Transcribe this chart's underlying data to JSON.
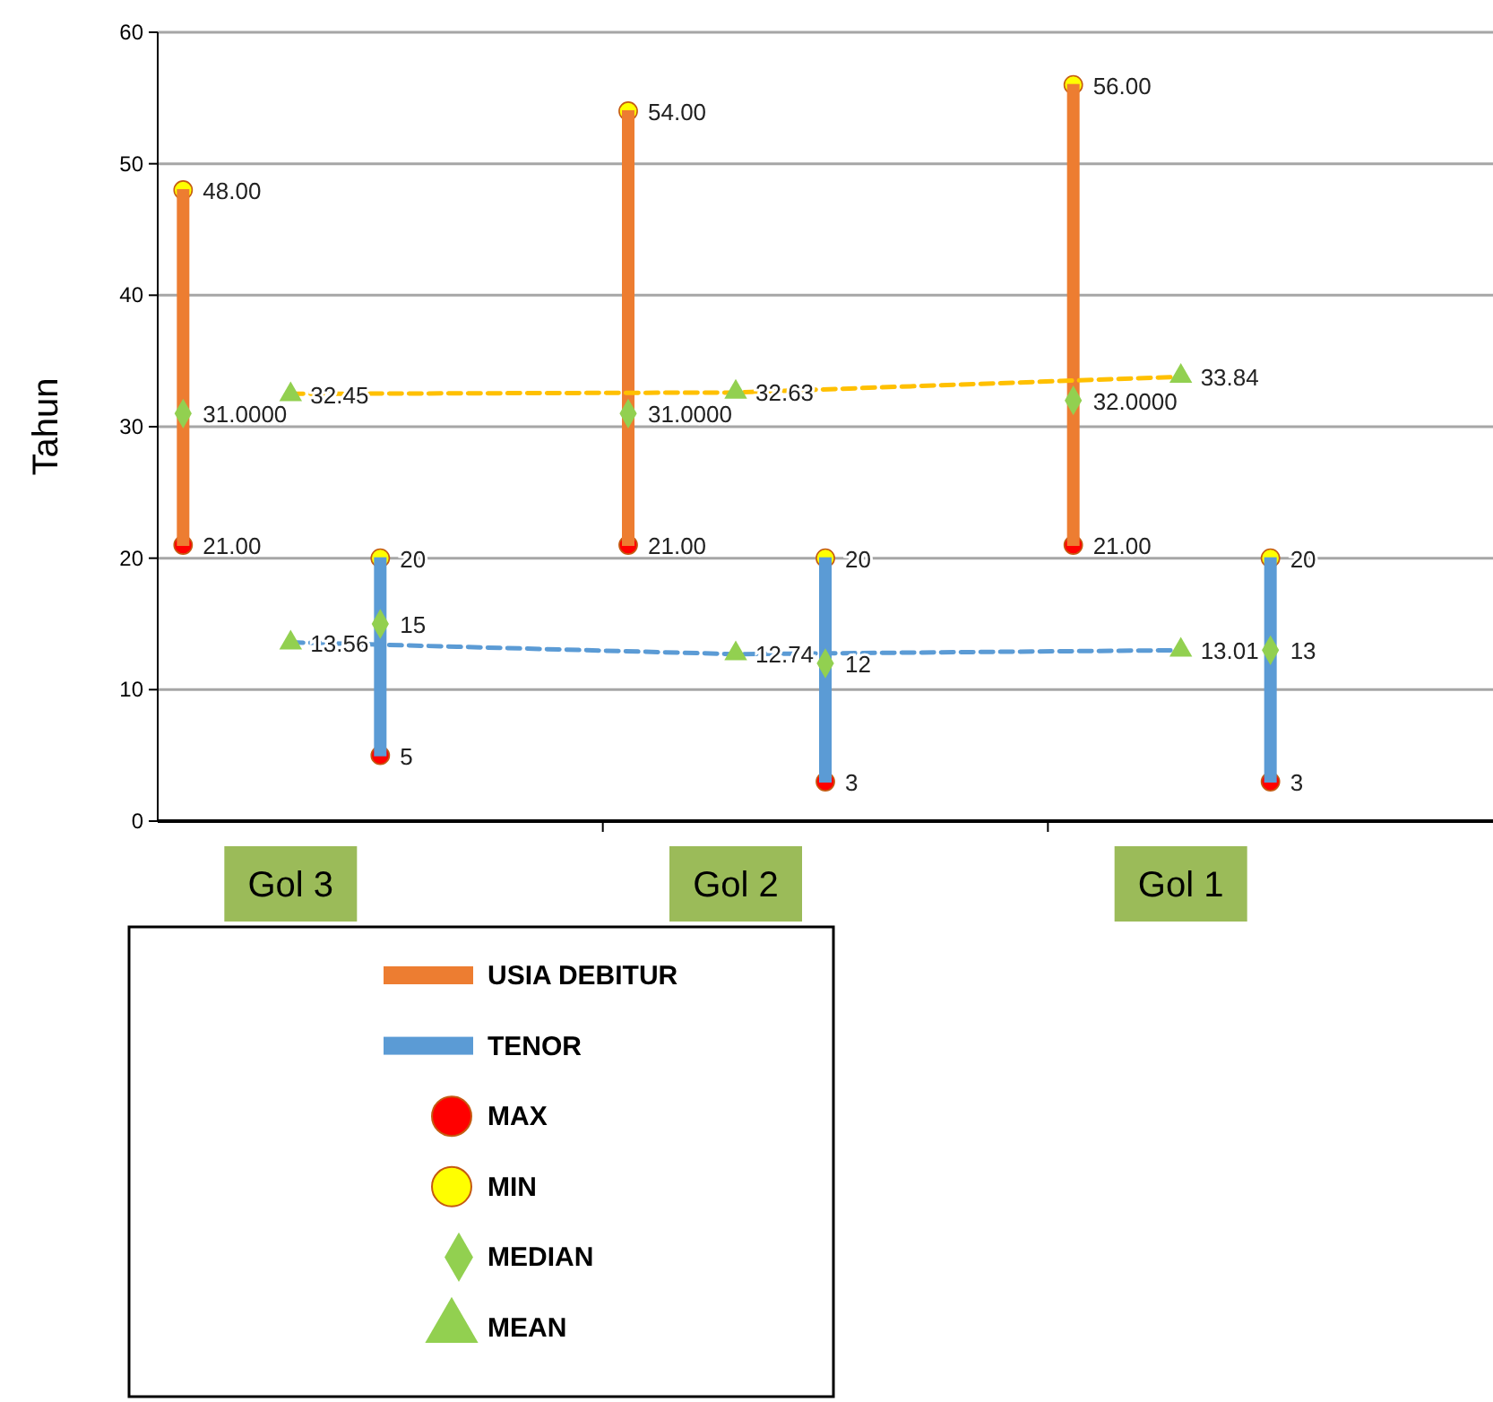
{
  "chart_data": {
    "type": "bar",
    "ylabel": "Tahun",
    "categories": [
      "Gol 3",
      "Gol 2",
      "Gol 1"
    ],
    "ylim": [
      0,
      60
    ],
    "yticks": [
      0,
      10,
      20,
      30,
      40,
      50,
      60
    ],
    "grid": "y",
    "legend": "bottom",
    "series": [
      {
        "name": "USIA DEBITUR",
        "color": "#ed7d31",
        "base": [
          21,
          21,
          21
        ],
        "values": [
          27,
          33,
          35
        ]
      },
      {
        "name": "TENOR",
        "color": "#5b9bd5",
        "base": [
          5,
          3,
          3
        ],
        "values": [
          15,
          17,
          17
        ]
      },
      {
        "type": "line",
        "color": "#ffc000",
        "line_style": "dashed",
        "marker": "none",
        "values": [
          32.5,
          32.6,
          33.8
        ]
      },
      {
        "type": "line",
        "color": "#5b9bd5",
        "line_style": "dashed",
        "marker": "none",
        "values": [
          13.6,
          12.7,
          13.0
        ]
      },
      {
        "name": "MAX",
        "type": "scatter",
        "color": "#ff0000",
        "marker": "circle",
        "x": [
          "Gol 3",
          "Gol 3",
          "Gol 2",
          "Gol 2",
          "Gol 1",
          "Gol 1"
        ],
        "values": [
          21,
          5,
          21,
          3,
          21,
          3
        ],
        "value_labels": [
          "21.00",
          "5",
          "21.00",
          "3",
          "21.00",
          "3"
        ]
      },
      {
        "name": "MIN",
        "type": "scatter",
        "color": "#ffff00",
        "marker": "circle",
        "x": [
          "Gol 3",
          "Gol 3",
          "Gol 2",
          "Gol 2",
          "Gol 1",
          "Gol 1"
        ],
        "values": [
          48,
          20,
          54,
          20,
          56,
          20
        ],
        "value_labels": [
          "48.00",
          "20",
          "54.00",
          "20",
          "56.00",
          "20"
        ]
      },
      {
        "name": "MEDIAN",
        "type": "scatter",
        "color": "#92d050",
        "marker": "diamond",
        "x": [
          "Gol 3",
          "Gol 3",
          "Gol 2",
          "Gol 2",
          "Gol 1",
          "Gol 1"
        ],
        "values": [
          31,
          15,
          31,
          12,
          32,
          13
        ],
        "value_labels": [
          "31.0000",
          "15",
          "31.0000",
          "12",
          "32.0000",
          "13"
        ]
      },
      {
        "name": "MEAN",
        "type": "scatter",
        "color": "#92d050",
        "marker": "triangle",
        "x": [
          "Gol 3",
          "Gol 3",
          "Gol 2",
          "Gol 2",
          "Gol 1",
          "Gol 1"
        ],
        "values": [
          32.45,
          13.56,
          32.63,
          12.74,
          33.84,
          13.01
        ],
        "value_labels": [
          "32.45",
          "13.56",
          "32.63",
          "12.74",
          "33.84",
          "13.01"
        ]
      }
    ]
  }
}
